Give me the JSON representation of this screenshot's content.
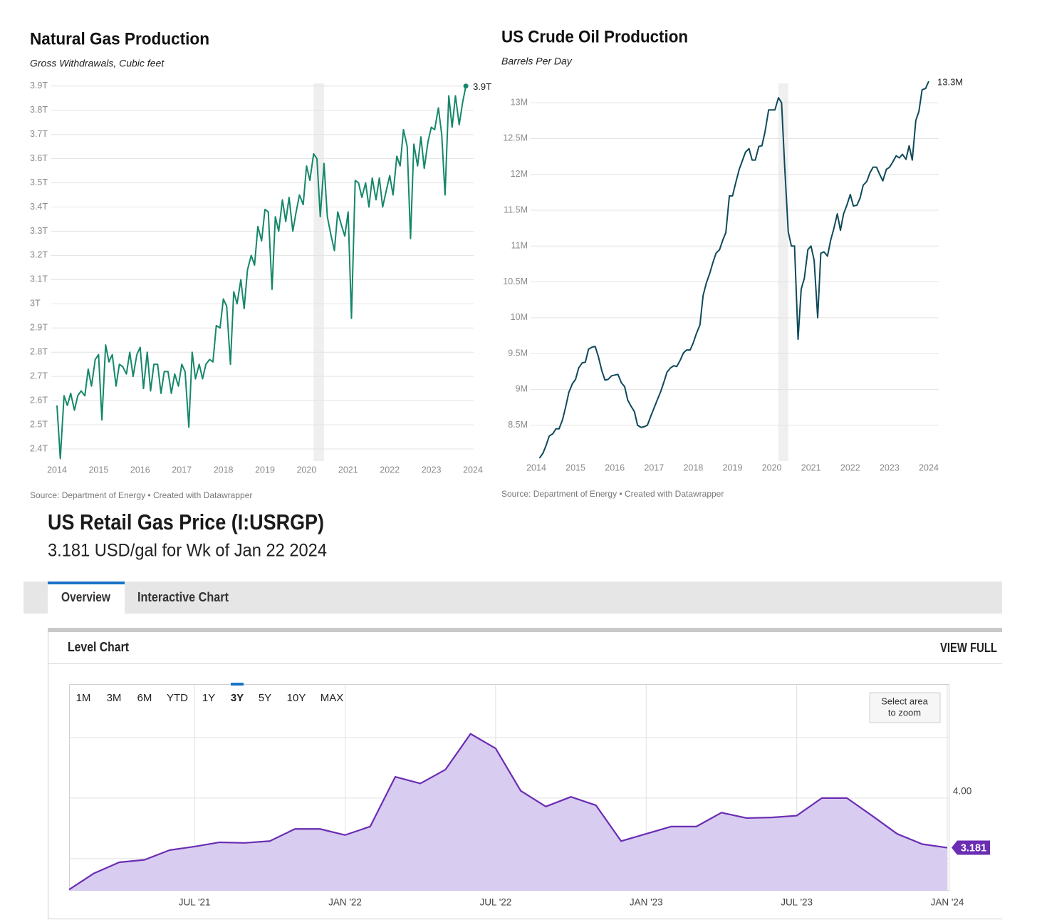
{
  "chart_data": [
    {
      "type": "line",
      "title": "Natural Gas Production",
      "subtitle": "Gross Withdrawals, Cubic feet",
      "source": "Source: Department of Energy • Created with Datawrapper",
      "color": "#15876a",
      "grid": true,
      "xlim": [
        2014,
        2024
      ],
      "xticks": [
        2014,
        2015,
        2016,
        2017,
        2018,
        2019,
        2020,
        2021,
        2022,
        2023,
        2024
      ],
      "ylim": [
        2350000000000.0,
        3920000000000.0
      ],
      "yticks": [
        {
          "value": 2400000000000.0,
          "label": "2.4T"
        },
        {
          "value": 2500000000000.0,
          "label": "2.5T"
        },
        {
          "value": 2600000000000.0,
          "label": "2.6T"
        },
        {
          "value": 2700000000000.0,
          "label": "2.7T"
        },
        {
          "value": 2800000000000.0,
          "label": "2.8T"
        },
        {
          "value": 2900000000000.0,
          "label": "2.9T"
        },
        {
          "value": 3000000000000.0,
          "label": "3T"
        },
        {
          "value": 3100000000000.0,
          "label": "3.1T"
        },
        {
          "value": 3200000000000.0,
          "label": "3.2T"
        },
        {
          "value": 3300000000000.0,
          "label": "3.3T"
        },
        {
          "value": 3400000000000.0,
          "label": "3.4T"
        },
        {
          "value": 3500000000000.0,
          "label": "3.5T"
        },
        {
          "value": 3600000000000.0,
          "label": "3.6T"
        },
        {
          "value": 3700000000000.0,
          "label": "3.7T"
        },
        {
          "value": 3800000000000.0,
          "label": "3.8T"
        },
        {
          "value": 3900000000000.0,
          "label": "3.9T"
        }
      ],
      "shaded_x": [
        2020.17,
        2020.42
      ],
      "x": [
        2014.0,
        2014.08,
        2014.17,
        2014.25,
        2014.33,
        2014.42,
        2014.5,
        2014.58,
        2014.67,
        2014.75,
        2014.83,
        2014.92,
        2015.0,
        2015.08,
        2015.17,
        2015.25,
        2015.33,
        2015.42,
        2015.5,
        2015.58,
        2015.67,
        2015.75,
        2015.83,
        2015.92,
        2016.0,
        2016.08,
        2016.17,
        2016.25,
        2016.33,
        2016.42,
        2016.5,
        2016.58,
        2016.67,
        2016.75,
        2016.83,
        2016.92,
        2017.0,
        2017.08,
        2017.17,
        2017.25,
        2017.33,
        2017.42,
        2017.5,
        2017.58,
        2017.67,
        2017.75,
        2017.83,
        2017.92,
        2018.0,
        2018.08,
        2018.17,
        2018.25,
        2018.33,
        2018.42,
        2018.5,
        2018.58,
        2018.67,
        2018.75,
        2018.83,
        2018.92,
        2019.0,
        2019.08,
        2019.17,
        2019.25,
        2019.33,
        2019.42,
        2019.5,
        2019.58,
        2019.67,
        2019.75,
        2019.83,
        2019.92,
        2020.0,
        2020.08,
        2020.17,
        2020.25,
        2020.33,
        2020.42,
        2020.5,
        2020.58,
        2020.67,
        2020.75,
        2020.83,
        2020.92,
        2021.0,
        2021.08,
        2021.17,
        2021.25,
        2021.33,
        2021.42,
        2021.5,
        2021.58,
        2021.67,
        2021.75,
        2021.83,
        2021.92,
        2022.0,
        2022.08,
        2022.17,
        2022.25,
        2022.33,
        2022.42,
        2022.5,
        2022.58,
        2022.67,
        2022.75,
        2022.83,
        2022.92,
        2023.0,
        2023.08,
        2023.17,
        2023.25,
        2023.33,
        2023.42,
        2023.5,
        2023.58,
        2023.67,
        2023.75,
        2023.83
      ],
      "values": [
        2580000000000.0,
        2360000000000.0,
        2620000000000.0,
        2580000000000.0,
        2630000000000.0,
        2560000000000.0,
        2620000000000.0,
        2640000000000.0,
        2620000000000.0,
        2730000000000.0,
        2660000000000.0,
        2770000000000.0,
        2790000000000.0,
        2520000000000.0,
        2830000000000.0,
        2760000000000.0,
        2790000000000.0,
        2660000000000.0,
        2750000000000.0,
        2740000000000.0,
        2710000000000.0,
        2800000000000.0,
        2700000000000.0,
        2790000000000.0,
        2820000000000.0,
        2650000000000.0,
        2800000000000.0,
        2640000000000.0,
        2750000000000.0,
        2750000000000.0,
        2630000000000.0,
        2720000000000.0,
        2720000000000.0,
        2630000000000.0,
        2710000000000.0,
        2660000000000.0,
        2750000000000.0,
        2720000000000.0,
        2490000000000.0,
        2800000000000.0,
        2690000000000.0,
        2750000000000.0,
        2690000000000.0,
        2750000000000.0,
        2770000000000.0,
        2760000000000.0,
        2910000000000.0,
        2900000000000.0,
        3020000000000.0,
        2990000000000.0,
        2750000000000.0,
        3050000000000.0,
        3000000000000.0,
        3100000000000.0,
        2980000000000.0,
        3140000000000.0,
        3200000000000.0,
        3160000000000.0,
        3320000000000.0,
        3260000000000.0,
        3390000000000.0,
        3380000000000.0,
        3060000000000.0,
        3360000000000.0,
        3300000000000.0,
        3430000000000.0,
        3340000000000.0,
        3440000000000.0,
        3300000000000.0,
        3380000000000.0,
        3450000000000.0,
        3410000000000.0,
        3570000000000.0,
        3510000000000.0,
        3620000000000.0,
        3600000000000.0,
        3360000000000.0,
        3580000000000.0,
        3360000000000.0,
        3290000000000.0,
        3220000000000.0,
        3380000000000.0,
        3330000000000.0,
        3280000000000.0,
        3380000000000.0,
        2940000000000.0,
        3510000000000.0,
        3500000000000.0,
        3440000000000.0,
        3500000000000.0,
        3400000000000.0,
        3520000000000.0,
        3430000000000.0,
        3520000000000.0,
        3400000000000.0,
        3470000000000.0,
        3530000000000.0,
        3450000000000.0,
        3610000000000.0,
        3570000000000.0,
        3720000000000.0,
        3650000000000.0,
        3270000000000.0,
        3660000000000.0,
        3570000000000.0,
        3690000000000.0,
        3560000000000.0,
        3670000000000.0,
        3730000000000.0,
        3720000000000.0,
        3810000000000.0,
        3700000000000.0,
        3450000000000.0,
        3860000000000.0,
        3730000000000.0,
        3860000000000.0,
        3740000000000.0,
        3830000000000.0,
        3900000000000.0
      ],
      "end_label": "3.9T"
    },
    {
      "type": "line",
      "title": "US Crude Oil Production",
      "subtitle": "Barrels Per Day",
      "source": "Source: Department of Energy • Created with Datawrapper",
      "color": "#0f4a5a",
      "grid": true,
      "xlim": [
        2014,
        2024
      ],
      "xticks": [
        2014,
        2015,
        2016,
        2017,
        2018,
        2019,
        2020,
        2021,
        2022,
        2023,
        2024
      ],
      "ylim": [
        8000000.0,
        13300000.0
      ],
      "yticks": [
        {
          "value": 8500000.0,
          "label": "8.5M"
        },
        {
          "value": 9000000.0,
          "label": "9M"
        },
        {
          "value": 9500000.0,
          "label": "9.5M"
        },
        {
          "value": 10000000.0,
          "label": "10M"
        },
        {
          "value": 10500000.0,
          "label": "10.5M"
        },
        {
          "value": 11000000.0,
          "label": "11M"
        },
        {
          "value": 11500000.0,
          "label": "11.5M"
        },
        {
          "value": 12000000.0,
          "label": "12M"
        },
        {
          "value": 12500000.0,
          "label": "12.5M"
        },
        {
          "value": 13000000.0,
          "label": "13M"
        }
      ],
      "shaded_x": [
        2020.17,
        2020.42
      ],
      "x": [
        2014.08,
        2014.17,
        2014.25,
        2014.33,
        2014.42,
        2014.5,
        2014.58,
        2014.67,
        2014.75,
        2014.83,
        2014.92,
        2015.0,
        2015.08,
        2015.17,
        2015.25,
        2015.33,
        2015.42,
        2015.5,
        2015.58,
        2015.67,
        2015.75,
        2015.83,
        2015.92,
        2016.0,
        2016.08,
        2016.17,
        2016.25,
        2016.33,
        2016.42,
        2016.5,
        2016.58,
        2016.67,
        2016.75,
        2016.83,
        2016.92,
        2017.0,
        2017.08,
        2017.17,
        2017.25,
        2017.33,
        2017.42,
        2017.5,
        2017.58,
        2017.67,
        2017.75,
        2017.83,
        2017.92,
        2018.0,
        2018.08,
        2018.17,
        2018.25,
        2018.33,
        2018.42,
        2018.5,
        2018.58,
        2018.67,
        2018.75,
        2018.83,
        2018.92,
        2019.0,
        2019.08,
        2019.17,
        2019.25,
        2019.33,
        2019.42,
        2019.5,
        2019.58,
        2019.67,
        2019.75,
        2019.83,
        2019.92,
        2020.0,
        2020.08,
        2020.17,
        2020.25,
        2020.33,
        2020.42,
        2020.5,
        2020.58,
        2020.67,
        2020.75,
        2020.83,
        2020.92,
        2021.0,
        2021.08,
        2021.17,
        2021.25,
        2021.33,
        2021.42,
        2021.5,
        2021.58,
        2021.67,
        2021.75,
        2021.83,
        2021.92,
        2022.0,
        2022.08,
        2022.17,
        2022.25,
        2022.33,
        2022.42,
        2022.5,
        2022.58,
        2022.67,
        2022.75,
        2022.83,
        2022.92,
        2023.0,
        2023.08,
        2023.17,
        2023.25,
        2023.33,
        2023.42,
        2023.5,
        2023.58,
        2023.67,
        2023.75,
        2023.83,
        2023.92,
        2024.0
      ],
      "values": [
        8040000.0,
        8110000.0,
        8220000.0,
        8350000.0,
        8380000.0,
        8450000.0,
        8450000.0,
        8580000.0,
        8760000.0,
        8960000.0,
        9080000.0,
        9140000.0,
        9300000.0,
        9370000.0,
        9380000.0,
        9560000.0,
        9590000.0,
        9600000.0,
        9460000.0,
        9260000.0,
        9130000.0,
        9140000.0,
        9190000.0,
        9200000.0,
        9210000.0,
        9090000.0,
        9040000.0,
        8850000.0,
        8760000.0,
        8690000.0,
        8500000.0,
        8470000.0,
        8480000.0,
        8500000.0,
        8630000.0,
        8740000.0,
        8850000.0,
        8970000.0,
        9100000.0,
        9240000.0,
        9300000.0,
        9330000.0,
        9320000.0,
        9410000.0,
        9510000.0,
        9550000.0,
        9550000.0,
        9650000.0,
        9780000.0,
        9900000.0,
        10310000.0,
        10480000.0,
        10620000.0,
        10770000.0,
        10900000.0,
        10950000.0,
        11080000.0,
        11190000.0,
        11700000.0,
        11700000.0,
        11880000.0,
        12070000.0,
        12190000.0,
        12310000.0,
        12360000.0,
        12200000.0,
        12200000.0,
        12390000.0,
        12400000.0,
        12600000.0,
        12900000.0,
        12900000.0,
        12900000.0,
        13070000.0,
        13000000.0,
        12100000.0,
        11200000.0,
        11000000.0,
        11000000.0,
        9700000.0,
        10400000.0,
        10550000.0,
        10950000.0,
        11000000.0,
        10800000.0,
        10000000.0,
        10900000.0,
        10920000.0,
        10860000.0,
        11080000.0,
        11240000.0,
        11450000.0,
        11220000.0,
        11450000.0,
        11580000.0,
        11720000.0,
        11560000.0,
        11570000.0,
        11670000.0,
        11850000.0,
        11900000.0,
        12020000.0,
        12100000.0,
        12100000.0,
        12000000.0,
        11910000.0,
        12070000.0,
        12100000.0,
        12170000.0,
        12260000.0,
        12230000.0,
        12280000.0,
        12210000.0,
        12400000.0,
        12200000.0,
        12750000.0,
        12880000.0,
        13180000.0,
        13200000.0,
        13300000.0
      ],
      "end_label": "13.3M"
    },
    {
      "type": "area",
      "title": "US Retail Gas Price (I:USRGP)",
      "subtitle": "3.181 USD/gal for Wk of Jan 22 2024",
      "tabs": [
        "Overview",
        "Interactive Chart"
      ],
      "active_tab": 0,
      "panel_title": "Level Chart",
      "link": "VIEW FULL",
      "ranges": [
        "1M",
        "3M",
        "6M",
        "YTD",
        "1Y",
        "3Y",
        "5Y",
        "10Y",
        "MAX"
      ],
      "active_range": 5,
      "zoom_hint": [
        "Select area",
        "to zoom"
      ],
      "color": "#6a2db3",
      "fill": "#d8ccf0",
      "grid": true,
      "xlim": [
        "2021-02",
        "2024-01"
      ],
      "xticks": [
        {
          "value": "2021-07",
          "label": "JUL '21"
        },
        {
          "value": "2022-01",
          "label": "JAN '22"
        },
        {
          "value": "2022-07",
          "label": "JUL '22"
        },
        {
          "value": "2023-01",
          "label": "JAN '23"
        },
        {
          "value": "2023-07",
          "label": "JUL '23"
        },
        {
          "value": "2024-01",
          "label": "JAN '24"
        }
      ],
      "ylim": [
        2.47,
        5.88
      ],
      "yticks": [
        {
          "value": 3,
          "label": null
        },
        {
          "value": 4,
          "label": "4.00"
        },
        {
          "value": 5,
          "label": null
        }
      ],
      "x": [
        "2021-02",
        "2021-03",
        "2021-04",
        "2021-05",
        "2021-06",
        "2021-07",
        "2021-08",
        "2021-09",
        "2021-10",
        "2021-11",
        "2021-12",
        "2022-01",
        "2022-02",
        "2022-03",
        "2022-04",
        "2022-05",
        "2022-06",
        "2022-07",
        "2022-08",
        "2022-09",
        "2022-10",
        "2022-11",
        "2022-12",
        "2023-01",
        "2023-02",
        "2023-03",
        "2023-04",
        "2023-05",
        "2023-06",
        "2023-07",
        "2023-08",
        "2023-09",
        "2023-10",
        "2023-11",
        "2023-12",
        "2024-01"
      ],
      "values": [
        2.49,
        2.76,
        2.94,
        2.98,
        3.14,
        3.2,
        3.27,
        3.26,
        3.29,
        3.49,
        3.49,
        3.39,
        3.53,
        4.35,
        4.24,
        4.47,
        5.06,
        4.82,
        4.12,
        3.86,
        4.02,
        3.88,
        3.29,
        3.41,
        3.53,
        3.53,
        3.76,
        3.67,
        3.68,
        3.71,
        4.0,
        4.0,
        3.71,
        3.41,
        3.24,
        3.181
      ],
      "end_label": "3.181"
    }
  ]
}
